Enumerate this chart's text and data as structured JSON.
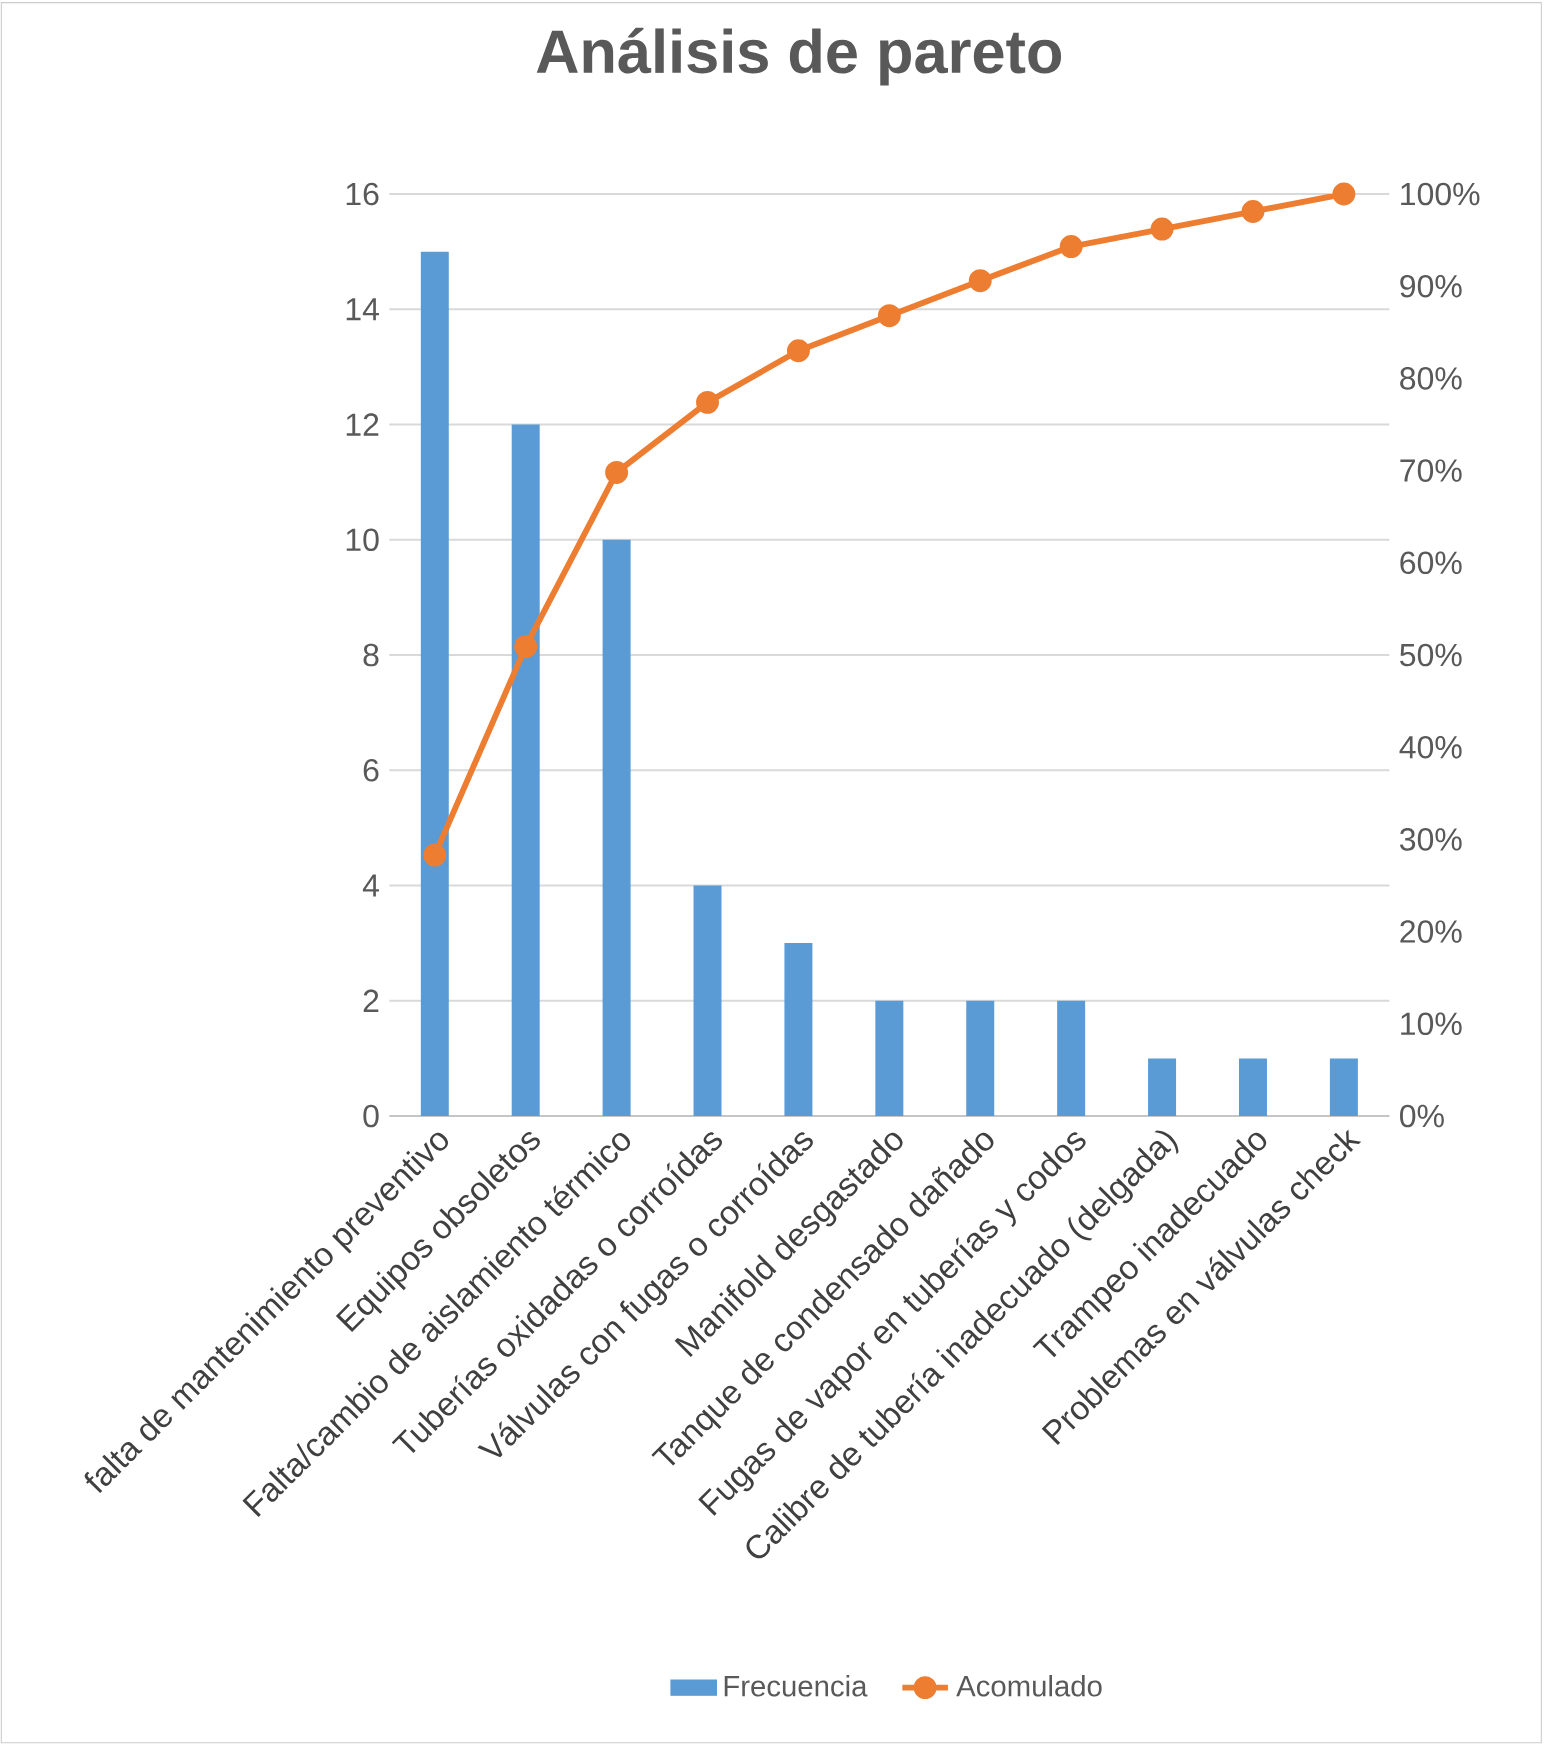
{
  "chart_data": {
    "type": "bar",
    "title": "Análisis de pareto",
    "categories": [
      "falta de mantenimiento preventivo",
      "Equipos obsoletos",
      "Falta/cambio de aislamiento térmico",
      "Tuberías oxidadas o corroídas",
      "Válvulas con fugas o corroídas",
      "Manifold desgastado",
      "Tanque de condensado dañado",
      "Fugas de vapor en tuberías y codos",
      "Calibre de tubería inadecuado (delgada)",
      "Trampeo inadecuado",
      "Problemas en válvulas check"
    ],
    "series": [
      {
        "name": "Frecuencia",
        "color": "#5b9bd5",
        "values": [
          15,
          12,
          10,
          4,
          3,
          2,
          2,
          2,
          1,
          1,
          1
        ]
      },
      {
        "name": "Acomulado",
        "type": "line",
        "axis": "y2",
        "color": "#ed7d31",
        "marker": "circle",
        "values": [
          28.3,
          50.9,
          69.8,
          77.4,
          83.0,
          86.8,
          90.6,
          94.3,
          96.2,
          98.1,
          100
        ]
      }
    ],
    "ylim": [
      0,
      16
    ],
    "yticks": [
      0,
      2,
      4,
      6,
      8,
      10,
      12,
      14,
      16
    ],
    "y2lim": [
      0,
      100
    ],
    "y2ticks": [
      {
        "value": 0,
        "label": "0%"
      },
      {
        "value": 10,
        "label": "10%"
      },
      {
        "value": 20,
        "label": "20%"
      },
      {
        "value": 30,
        "label": "30%"
      },
      {
        "value": 40,
        "label": "40%"
      },
      {
        "value": 50,
        "label": "50%"
      },
      {
        "value": 60,
        "label": "60%"
      },
      {
        "value": 70,
        "label": "70%"
      },
      {
        "value": 80,
        "label": "80%"
      },
      {
        "value": 90,
        "label": "90%"
      },
      {
        "value": 100,
        "label": "100%"
      }
    ],
    "grid": "y",
    "legend": "bottom"
  }
}
